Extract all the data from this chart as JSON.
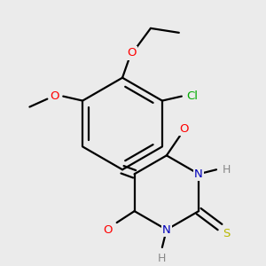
{
  "bg_color": "#ebebeb",
  "bond_color": "#000000",
  "atom_colors": {
    "O": "#ff0000",
    "N": "#0000bb",
    "S": "#b8b800",
    "Cl": "#00aa00",
    "H": "#888888",
    "C": "#000000"
  },
  "figsize": [
    3.0,
    3.0
  ],
  "dpi": 100,
  "lw": 1.6,
  "fontsize": 9.5
}
